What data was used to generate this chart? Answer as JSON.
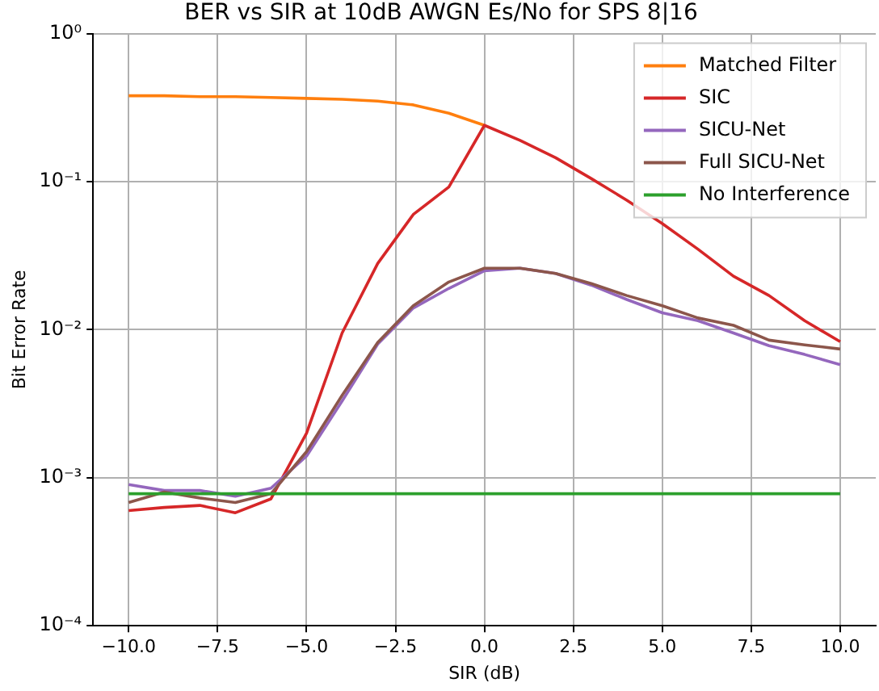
{
  "chart_data": {
    "type": "line",
    "title": "BER vs SIR at 10dB AWGN Es/No for SPS 8|16",
    "xlabel": "SIR (dB)",
    "ylabel": "Bit Error Rate",
    "x": [
      -10,
      -9,
      -8,
      -7,
      -6,
      -5,
      -4,
      -3,
      -2,
      -1,
      0,
      1,
      2,
      3,
      4,
      5,
      6,
      7,
      8,
      9,
      10
    ],
    "series": [
      {
        "name": "Matched Filter",
        "color": "#ff7f0e",
        "values": [
          0.38,
          0.38,
          0.375,
          0.375,
          0.37,
          0.365,
          0.36,
          0.35,
          0.33,
          0.29,
          0.24,
          null,
          null,
          null,
          null,
          null,
          null,
          null,
          null,
          null,
          null
        ]
      },
      {
        "name": "SIC",
        "color": "#d62728",
        "values": [
          0.0006,
          0.00063,
          0.00065,
          0.00058,
          0.00072,
          0.002,
          0.0095,
          0.028,
          0.06,
          0.092,
          0.24,
          0.19,
          0.145,
          0.105,
          0.075,
          0.052,
          0.035,
          0.023,
          0.017,
          0.0115,
          0.0083
        ]
      },
      {
        "name": "SICU-Net",
        "color": "#9467bd",
        "values": [
          0.0009,
          0.00082,
          0.00082,
          0.00075,
          0.00085,
          0.0014,
          0.0033,
          0.008,
          0.014,
          0.019,
          0.025,
          0.026,
          0.024,
          0.02,
          0.016,
          0.013,
          0.0115,
          0.0095,
          0.0078,
          0.0068,
          0.0058
        ]
      },
      {
        "name": "Full SICU-Net",
        "color": "#8c564b",
        "values": [
          0.00068,
          0.0008,
          0.00073,
          0.00068,
          0.00078,
          0.0015,
          0.0036,
          0.0082,
          0.0145,
          0.021,
          0.026,
          0.026,
          0.024,
          0.0205,
          0.017,
          0.0145,
          0.012,
          0.0107,
          0.0085,
          0.0079,
          0.0074
        ]
      },
      {
        "name": "No Interference",
        "color": "#2ca02c",
        "values": [
          0.00078,
          0.00078,
          0.00078,
          0.00078,
          0.00078,
          0.00078,
          0.00078,
          0.00078,
          0.00078,
          0.00078,
          0.00078,
          0.00078,
          0.00078,
          0.00078,
          0.00078,
          0.00078,
          0.00078,
          0.00078,
          0.00078,
          0.00078,
          0.00078
        ]
      }
    ],
    "xlim": [
      -11,
      11
    ],
    "xticks": [
      {
        "value": -10,
        "label": "−10.0"
      },
      {
        "value": -7.5,
        "label": "−7.5"
      },
      {
        "value": -5,
        "label": "−5.0"
      },
      {
        "value": -2.5,
        "label": "−2.5"
      },
      {
        "value": 0,
        "label": "0.0"
      },
      {
        "value": 2.5,
        "label": "2.5"
      },
      {
        "value": 5,
        "label": "5.0"
      },
      {
        "value": 7.5,
        "label": "7.5"
      },
      {
        "value": 10,
        "label": "10.0"
      }
    ],
    "ylim": [
      0.0001,
      1
    ],
    "yticks": [
      {
        "value": 0.0001,
        "label": "10⁻⁴"
      },
      {
        "value": 0.001,
        "label": "10⁻³"
      },
      {
        "value": 0.01,
        "label": "10⁻²"
      },
      {
        "value": 0.1,
        "label": "10⁻¹"
      },
      {
        "value": 1,
        "label": "10⁰"
      }
    ],
    "log": "y",
    "grid": true,
    "legend": "top right",
    "marker": "none",
    "line_style": "solid"
  }
}
